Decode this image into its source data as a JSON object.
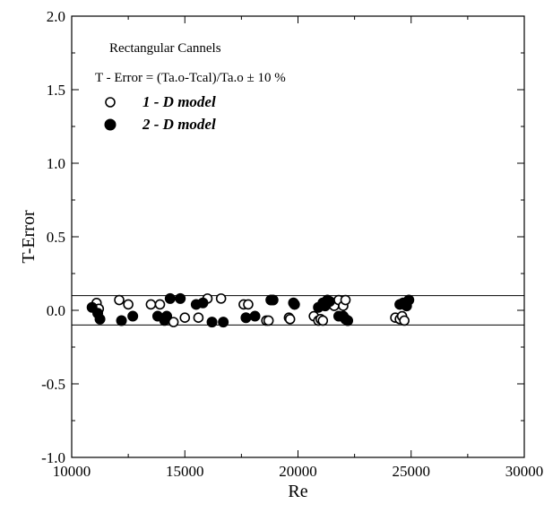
{
  "chart_data": {
    "type": "scatter",
    "xlabel": "Re",
    "ylabel": "T-Error",
    "xlim": [
      10000,
      30000
    ],
    "ylim": [
      -1.0,
      2.0
    ],
    "x_ticks": [
      "10000",
      "15000",
      "20000",
      "25000",
      "30000"
    ],
    "y_ticks": [
      "-1.0",
      "-0.5",
      "0.0",
      "0.5",
      "1.0",
      "1.5",
      "2.0"
    ],
    "grid": false,
    "annotation_title": "Rectangular Cannels",
    "annotation_formula": "T - Error = (Ta.o-Tcal)/Ta.o   ± 10 %",
    "reference_lines": [
      0.1,
      -0.1
    ],
    "legend_position": "top-left",
    "series": [
      {
        "name": "1 - D model",
        "marker": "open-circle",
        "points": [
          [
            11100,
            0.05
          ],
          [
            11200,
            0.01
          ],
          [
            12100,
            0.07
          ],
          [
            12500,
            0.04
          ],
          [
            13500,
            0.04
          ],
          [
            13900,
            0.04
          ],
          [
            14100,
            -0.07
          ],
          [
            14500,
            -0.08
          ],
          [
            15000,
            -0.05
          ],
          [
            15600,
            -0.05
          ],
          [
            16000,
            0.08
          ],
          [
            16600,
            0.08
          ],
          [
            17600,
            0.04
          ],
          [
            17800,
            0.04
          ],
          [
            18600,
            -0.07
          ],
          [
            18700,
            -0.07
          ],
          [
            19600,
            -0.05
          ],
          [
            19650,
            -0.06
          ],
          [
            20700,
            -0.04
          ],
          [
            20900,
            -0.07
          ],
          [
            21000,
            -0.06
          ],
          [
            21100,
            -0.07
          ],
          [
            21600,
            0.03
          ],
          [
            21800,
            0.07
          ],
          [
            22000,
            0.03
          ],
          [
            22100,
            0.07
          ],
          [
            24300,
            -0.05
          ],
          [
            24500,
            -0.06
          ],
          [
            24600,
            -0.04
          ],
          [
            24700,
            -0.07
          ]
        ]
      },
      {
        "name": "2 - D model",
        "marker": "filled-circle",
        "points": [
          [
            10900,
            0.02
          ],
          [
            11150,
            -0.02
          ],
          [
            11250,
            -0.06
          ],
          [
            12200,
            -0.07
          ],
          [
            12700,
            -0.04
          ],
          [
            13800,
            -0.04
          ],
          [
            14100,
            -0.06
          ],
          [
            14200,
            -0.04
          ],
          [
            14350,
            0.08
          ],
          [
            14800,
            0.08
          ],
          [
            15500,
            0.04
          ],
          [
            15800,
            0.05
          ],
          [
            16200,
            -0.08
          ],
          [
            16700,
            -0.08
          ],
          [
            17700,
            -0.05
          ],
          [
            18100,
            -0.04
          ],
          [
            18800,
            0.07
          ],
          [
            18900,
            0.07
          ],
          [
            19800,
            0.05
          ],
          [
            19850,
            0.04
          ],
          [
            20900,
            0.02
          ],
          [
            21100,
            0.05
          ],
          [
            21200,
            0.03
          ],
          [
            21300,
            0.07
          ],
          [
            21400,
            0.06
          ],
          [
            21800,
            -0.04
          ],
          [
            22000,
            -0.04
          ],
          [
            22100,
            -0.06
          ],
          [
            22200,
            -0.07
          ],
          [
            24500,
            0.04
          ],
          [
            24650,
            0.05
          ],
          [
            24800,
            0.03
          ],
          [
            24900,
            0.07
          ]
        ]
      }
    ]
  }
}
